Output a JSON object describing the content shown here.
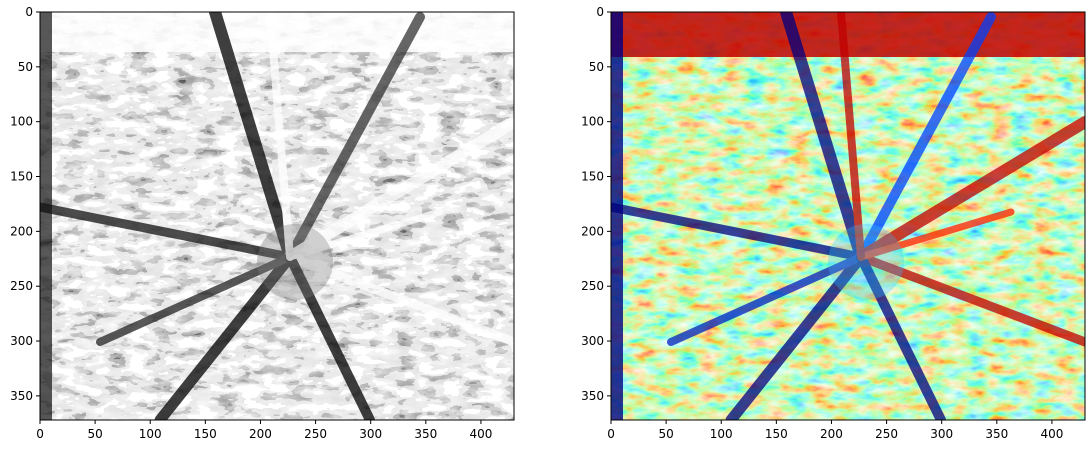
{
  "chart_data": [
    {
      "type": "heatmap",
      "title": "",
      "xlabel": "",
      "ylabel": "",
      "colormap": "gray",
      "image_shape": [
        372,
        430
      ],
      "xlim": [
        0,
        430
      ],
      "ylim": [
        372,
        0
      ],
      "y_inverted": true,
      "xticks": [
        0,
        50,
        100,
        150,
        200,
        250,
        300,
        350,
        400
      ],
      "yticks": [
        0,
        50,
        100,
        150,
        200,
        250,
        300,
        350
      ],
      "grid": false,
      "legend": "none",
      "description_colors": {
        "low": "#000000",
        "high": "#ffffff"
      }
    },
    {
      "type": "heatmap",
      "title": "",
      "xlabel": "",
      "ylabel": "",
      "colormap": "jet",
      "image_shape": [
        372,
        430
      ],
      "xlim": [
        0,
        430
      ],
      "ylim": [
        372,
        0
      ],
      "y_inverted": true,
      "xticks": [
        0,
        50,
        100,
        150,
        200,
        250,
        300,
        350,
        400
      ],
      "yticks": [
        0,
        50,
        100,
        150,
        200,
        250,
        300,
        350
      ],
      "grid": false,
      "legend": "none",
      "description_colors": {
        "low": "#00007f",
        "mid": "#7fff7f",
        "high": "#bf0000"
      }
    }
  ]
}
